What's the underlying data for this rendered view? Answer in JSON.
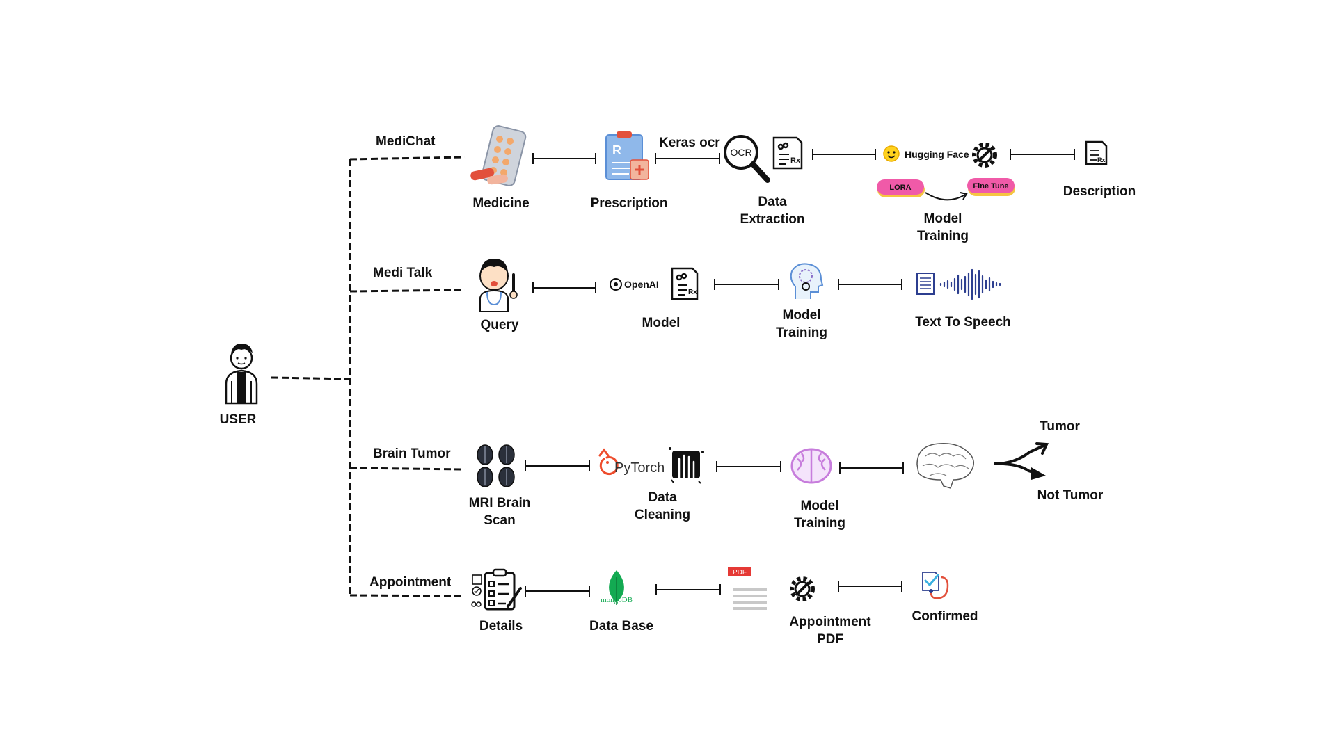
{
  "user": {
    "label": "USER"
  },
  "branches": {
    "medichat": {
      "name": "MediChat",
      "medicine": "Medicine",
      "prescription": "Prescription",
      "ocr_tool": "Keras ocr",
      "ocr_badge": "OCR",
      "extraction_1": "Data",
      "extraction_2": "Extraction",
      "hf": "Hugging Face",
      "lora": "LORA",
      "finetune": "Fine Tune",
      "training_1": "Model",
      "training_2": "Training",
      "description": "Description"
    },
    "meditalk": {
      "name": "Medi Talk",
      "query": "Query",
      "openai": "OpenAI",
      "model": "Model",
      "training_1": "Model",
      "training_2": "Training",
      "tts": "Text To Speech"
    },
    "brain": {
      "name": "Brain Tumor",
      "mri_1": "MRI Brain",
      "mri_2": "Scan",
      "pytorch": "PyTorch",
      "cleaning_1": "Data",
      "cleaning_2": "Cleaning",
      "training_1": "Model",
      "training_2": "Training",
      "tumor": "Tumor",
      "not_tumor": "Not Tumor"
    },
    "appointment": {
      "name": "Appointment",
      "details": "Details",
      "mongodb": "mongoDB",
      "database": "Data Base",
      "pdf_badge": "PDF",
      "pdf_1": "Appointment",
      "pdf_2": "PDF",
      "confirmed": "Confirmed"
    }
  },
  "colors": {
    "line": "#111111",
    "lora_pill": "#f05aa8",
    "finetune_pill": "#f05aa8",
    "pill_shadow": "#f5c542",
    "mongodb_green": "#13aa52",
    "pytorch_orange": "#ee4c2c",
    "pdf_red": "#e53935",
    "brain_purple": "#c77ddc",
    "tts_blue": "#2c3e8f",
    "prescription_blue": "#5b8fd6"
  }
}
